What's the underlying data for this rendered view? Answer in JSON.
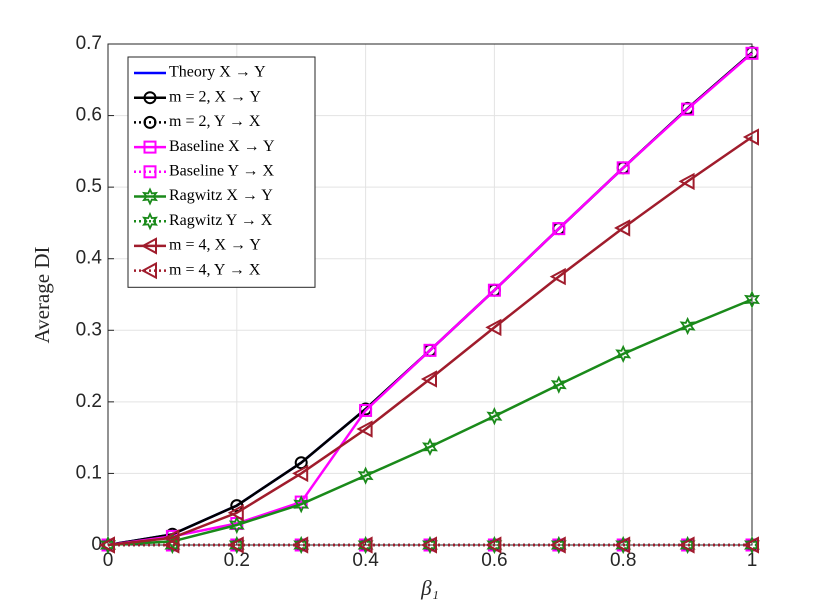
{
  "chart_data": {
    "type": "line",
    "x": [
      0,
      0.1,
      0.2,
      0.3,
      0.4,
      0.5,
      0.6,
      0.7,
      0.8,
      0.9,
      1
    ],
    "xlabel": "β₁",
    "ylabel": "Average DI",
    "xlim": [
      0,
      1
    ],
    "ylim": [
      0,
      0.7
    ],
    "xticks": [
      0,
      0.2,
      0.4,
      0.6,
      0.8,
      1
    ],
    "yticks": [
      0,
      0.1,
      0.2,
      0.3,
      0.4,
      0.5,
      0.6,
      0.7
    ],
    "grid": true,
    "legend": "upper left",
    "series": [
      {
        "name": "Theory X → Y",
        "color": "#0000ff",
        "dash": "solid",
        "marker": "none",
        "values": [
          0,
          0.015,
          0.055,
          0.115,
          0.19,
          0.272,
          0.356,
          0.442,
          0.527,
          0.61,
          0.688
        ]
      },
      {
        "name": "m = 2, X → Y",
        "color": "#000000",
        "dash": "solid",
        "marker": "circle",
        "values": [
          0,
          0.015,
          0.055,
          0.115,
          0.19,
          0.272,
          0.356,
          0.442,
          0.527,
          0.61,
          0.688
        ]
      },
      {
        "name": "m = 2, Y → X",
        "color": "#000000",
        "dash": "dotted",
        "marker": "circle",
        "values": [
          0,
          0,
          0,
          0,
          0,
          0,
          0,
          0,
          0,
          0,
          0
        ]
      },
      {
        "name": "Baseline X → Y",
        "color": "#ff00ff",
        "dash": "solid",
        "marker": "square",
        "values": [
          0,
          0.012,
          0.03,
          0.06,
          0.188,
          0.272,
          0.356,
          0.442,
          0.527,
          0.609,
          0.687
        ]
      },
      {
        "name": "Baseline Y → X",
        "color": "#ff00ff",
        "dash": "dotted",
        "marker": "square",
        "values": [
          0,
          0,
          0,
          0,
          0,
          0,
          0,
          0,
          0,
          0,
          0
        ]
      },
      {
        "name": "Ragwitz X → Y",
        "color": "#1a8a1a",
        "dash": "solid",
        "marker": "star",
        "values": [
          0,
          0.005,
          0.028,
          0.057,
          0.097,
          0.137,
          0.18,
          0.224,
          0.267,
          0.306,
          0.343
        ]
      },
      {
        "name": "Ragwitz Y → X",
        "color": "#1a8a1a",
        "dash": "dotted",
        "marker": "star",
        "values": [
          0,
          0,
          0,
          0,
          0,
          0,
          0,
          0,
          0,
          0,
          0
        ]
      },
      {
        "name": "m = 4, X → Y",
        "color": "#a01c2c",
        "dash": "solid",
        "marker": "triangle-left",
        "values": [
          0,
          0.01,
          0.045,
          0.1,
          0.162,
          0.232,
          0.304,
          0.375,
          0.443,
          0.508,
          0.57
        ]
      },
      {
        "name": "m = 4, Y → X",
        "color": "#a01c2c",
        "dash": "dotted",
        "marker": "triangle-left",
        "values": [
          0,
          0,
          0,
          0,
          0,
          0,
          0,
          0,
          0,
          0,
          0
        ]
      }
    ]
  }
}
